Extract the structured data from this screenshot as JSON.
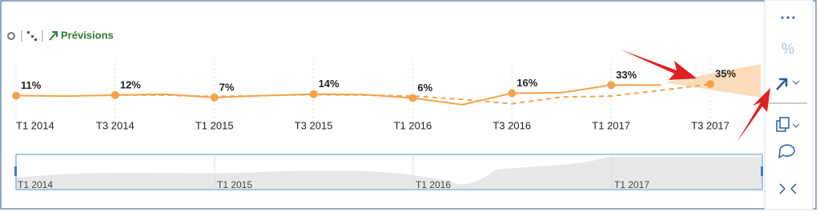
{
  "toolbar": {
    "title": "Prévisions",
    "side_percent": "%"
  },
  "chart_data": {
    "type": "line",
    "categories": [
      "T1 2014",
      null,
      "T3 2014",
      null,
      "T1 2015",
      null,
      "T3 2015",
      null,
      "T1 2016",
      null,
      "T3 2016",
      null,
      "T1 2017",
      null,
      "T3 2017"
    ],
    "ylim": [
      -40,
      77
    ],
    "series": [
      {
        "color": "#f5a34a",
        "dash": false,
        "values": [
          11,
          10,
          12,
          14,
          7,
          11,
          14,
          13,
          6,
          -8,
          16,
          17,
          33,
          33,
          null
        ],
        "value_labels": [
          "11%",
          null,
          "12%",
          null,
          "7%",
          null,
          "14%",
          null,
          "6%",
          null,
          "16%",
          null,
          "33%",
          null,
          null
        ]
      },
      {
        "color": "#f5a34a",
        "dash": true,
        "values": [
          null,
          null,
          12,
          12,
          9,
          11,
          13,
          12,
          10,
          3,
          -6,
          8,
          10,
          22,
          35
        ],
        "value_labels": [
          null,
          null,
          null,
          null,
          null,
          null,
          null,
          null,
          null,
          null,
          null,
          null,
          null,
          null,
          "35%"
        ]
      }
    ]
  },
  "navigator": {
    "labels": [
      "T1 2014",
      "T1 2015",
      "T1 2016",
      "T1 2017"
    ]
  }
}
